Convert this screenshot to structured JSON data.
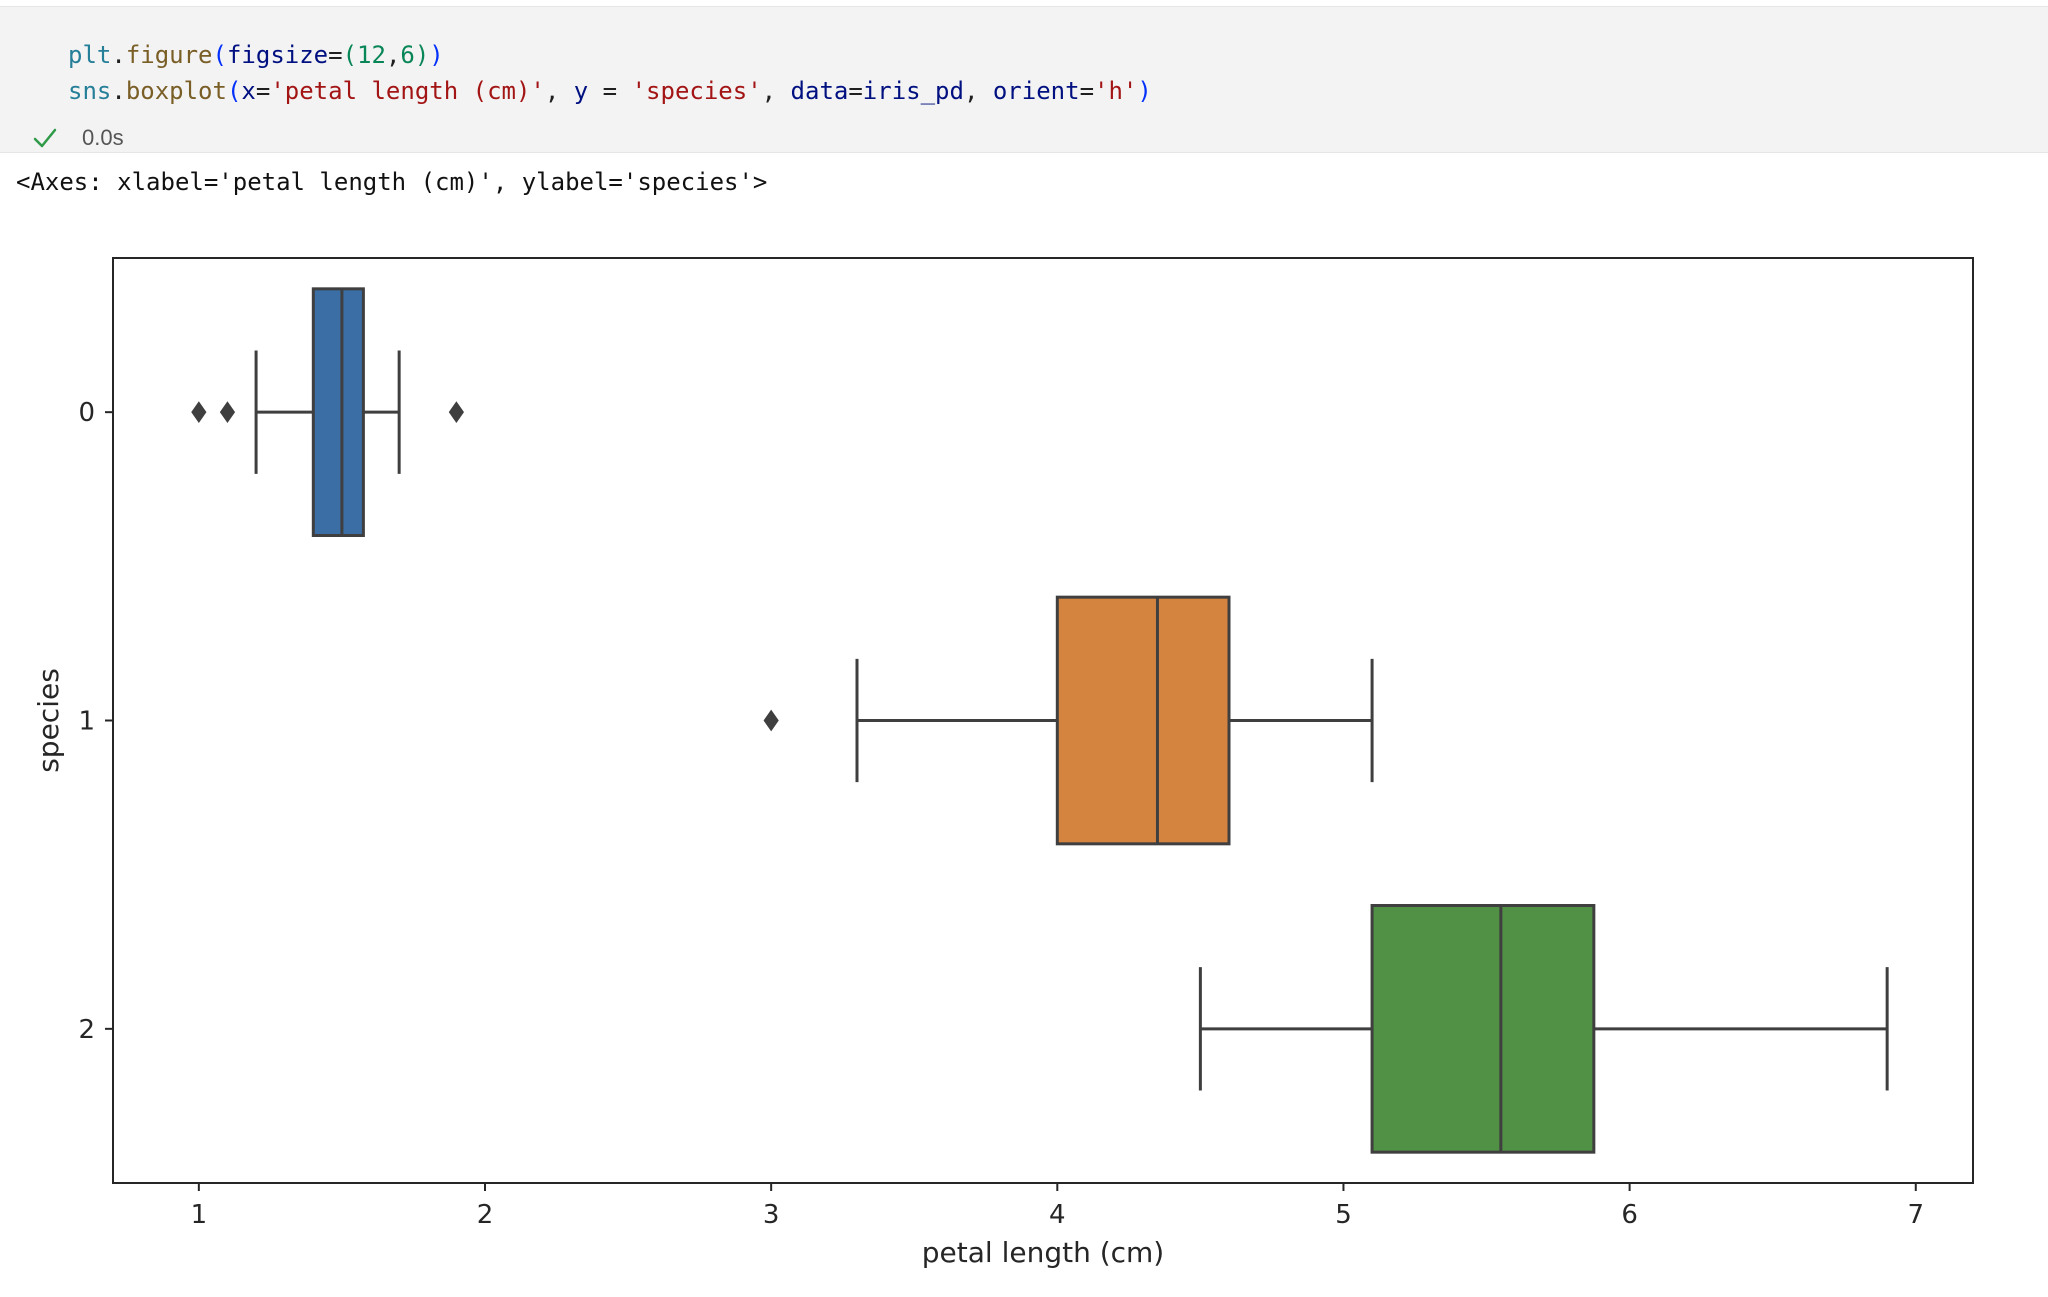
{
  "cell": {
    "code_lines": [
      [
        {
          "t": "plt",
          "c": "var"
        },
        {
          "t": ".",
          "c": "op"
        },
        {
          "t": "figure",
          "c": "fn"
        },
        {
          "t": "(",
          "c": "par"
        },
        {
          "t": "figsize",
          "c": "arg"
        },
        {
          "t": "=",
          "c": "op"
        },
        {
          "t": "(",
          "c": "num"
        },
        {
          "t": "12",
          "c": "num"
        },
        {
          "t": ",",
          "c": "op"
        },
        {
          "t": "6",
          "c": "num"
        },
        {
          "t": ")",
          "c": "num"
        },
        {
          "t": ")",
          "c": "par"
        }
      ],
      [
        {
          "t": "sns",
          "c": "var"
        },
        {
          "t": ".",
          "c": "op"
        },
        {
          "t": "boxplot",
          "c": "fn"
        },
        {
          "t": "(",
          "c": "par"
        },
        {
          "t": "x",
          "c": "arg"
        },
        {
          "t": "=",
          "c": "op"
        },
        {
          "t": "'petal length (cm)'",
          "c": "str"
        },
        {
          "t": ", ",
          "c": "op"
        },
        {
          "t": "y",
          "c": "arg"
        },
        {
          "t": " = ",
          "c": "op"
        },
        {
          "t": "'species'",
          "c": "str"
        },
        {
          "t": ", ",
          "c": "op"
        },
        {
          "t": "data",
          "c": "arg"
        },
        {
          "t": "=",
          "c": "op"
        },
        {
          "t": "iris_pd",
          "c": "arg"
        },
        {
          "t": ", ",
          "c": "op"
        },
        {
          "t": "orient",
          "c": "arg"
        },
        {
          "t": "=",
          "c": "op"
        },
        {
          "t": "'h'",
          "c": "str"
        },
        {
          "t": ")",
          "c": "par"
        }
      ]
    ],
    "status_time": "0.0s",
    "status_icon": "checkmark-icon"
  },
  "output": {
    "repr_text": "<Axes: xlabel='petal length (cm)', ylabel='species'>"
  },
  "colors": {
    "check": "#2f9a48",
    "box_edge": "#3f3f3f"
  },
  "chart_data": {
    "type": "box",
    "orientation": "horizontal",
    "xlabel": "petal length (cm)",
    "ylabel": "species",
    "xlim": [
      0.7,
      7.2
    ],
    "xticks": [
      1,
      2,
      3,
      4,
      5,
      6,
      7
    ],
    "categories": [
      "0",
      "1",
      "2"
    ],
    "series": [
      {
        "category": "0",
        "color": "#3a6ea5",
        "whisker_low": 1.2,
        "q1": 1.4,
        "median": 1.5,
        "q3": 1.575,
        "whisker_high": 1.7,
        "outliers": [
          1.0,
          1.1,
          1.9
        ]
      },
      {
        "category": "1",
        "color": "#d5843f",
        "whisker_low": 3.3,
        "q1": 4.0,
        "median": 4.35,
        "q3": 4.6,
        "whisker_high": 5.1,
        "outliers": [
          3.0
        ]
      },
      {
        "category": "2",
        "color": "#519145",
        "whisker_low": 4.5,
        "q1": 5.1,
        "median": 5.55,
        "q3": 5.875,
        "whisker_high": 6.9,
        "outliers": []
      }
    ],
    "grid": false,
    "legend": "none"
  }
}
